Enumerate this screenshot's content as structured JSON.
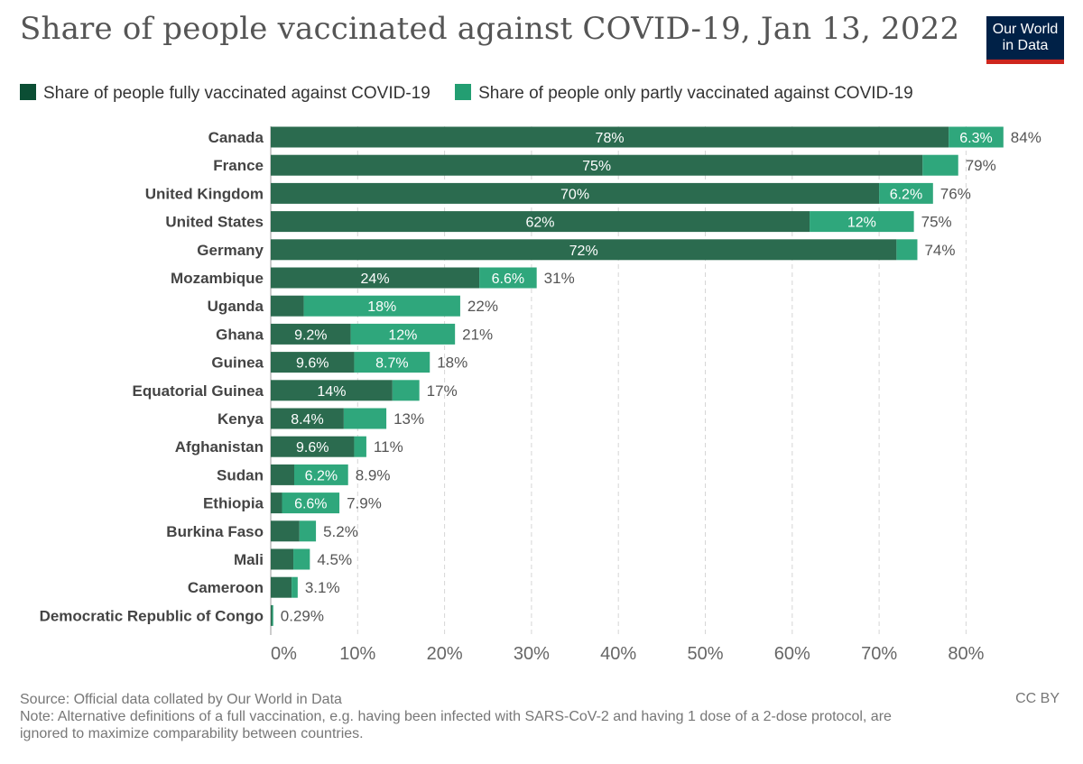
{
  "title": "Share of people vaccinated against COVID-19, Jan 13, 2022",
  "logo": {
    "line1": "Our World",
    "line2": "in Data"
  },
  "footer": {
    "source": "Source: Official data collated by Our World in Data",
    "note_line1": "Note: Alternative definitions of a full vaccination, e.g. having been infected with SARS-CoV-2 and having 1 dose of a 2-dose protocol, are",
    "note_line2": "ignored to maximize comparability between countries.",
    "license": "CC BY"
  },
  "colors": {
    "fully": "#2b6b4f",
    "partly": "#2fa77c",
    "legend_fully": "#0b4e34",
    "legend_partly": "#239e72",
    "grid": "#d6d6d6",
    "label": "#444444",
    "axis_tick": "#666666"
  },
  "chart_data": {
    "type": "bar",
    "orientation": "horizontal",
    "stacked": true,
    "legend": [
      "Share of people fully vaccinated against COVID-19",
      "Share of people only partly vaccinated against COVID-19"
    ],
    "categories": [
      "Canada",
      "France",
      "United Kingdom",
      "United States",
      "Germany",
      "Mozambique",
      "Uganda",
      "Ghana",
      "Guinea",
      "Equatorial Guinea",
      "Kenya",
      "Afghanistan",
      "Sudan",
      "Ethiopia",
      "Burkina Faso",
      "Mali",
      "Cameroon",
      "Democratic Republic of Congo"
    ],
    "series": [
      {
        "name": "Share of people fully vaccinated against COVID-19",
        "values": [
          78,
          75,
          70,
          62,
          72,
          24,
          3.8,
          9.2,
          9.6,
          14,
          8.4,
          9.6,
          2.7,
          1.3,
          3.3,
          2.6,
          2.4,
          0.15
        ],
        "labels": [
          "78%",
          "75%",
          "70%",
          "62%",
          "72%",
          "24%",
          "",
          "9.2%",
          "9.6%",
          "14%",
          "8.4%",
          "9.6%",
          "",
          "",
          "",
          "",
          "",
          ""
        ]
      },
      {
        "name": "Share of people only partly vaccinated against COVID-19",
        "values": [
          6.3,
          4.1,
          6.2,
          12,
          2.4,
          6.6,
          18,
          12,
          8.7,
          3.1,
          4.9,
          1.4,
          6.2,
          6.6,
          1.9,
          1.9,
          0.7,
          0.14
        ],
        "labels": [
          "6.3%",
          "",
          "6.2%",
          "12%",
          "",
          "6.6%",
          "18%",
          "12%",
          "8.7%",
          "",
          "",
          "",
          "6.2%",
          "6.6%",
          "",
          "",
          "",
          ""
        ]
      }
    ],
    "totals": [
      "84%",
      "79%",
      "76%",
      "75%",
      "74%",
      "31%",
      "22%",
      "21%",
      "18%",
      "17%",
      "13%",
      "11%",
      "8.9%",
      "7.9%",
      "5.2%",
      "4.5%",
      "3.1%",
      "0.29%"
    ],
    "x_ticks": [
      "0%",
      "10%",
      "20%",
      "30%",
      "40%",
      "50%",
      "60%",
      "70%",
      "80%"
    ],
    "xlim": [
      0,
      84
    ],
    "grid": true,
    "legend_position": "top"
  }
}
